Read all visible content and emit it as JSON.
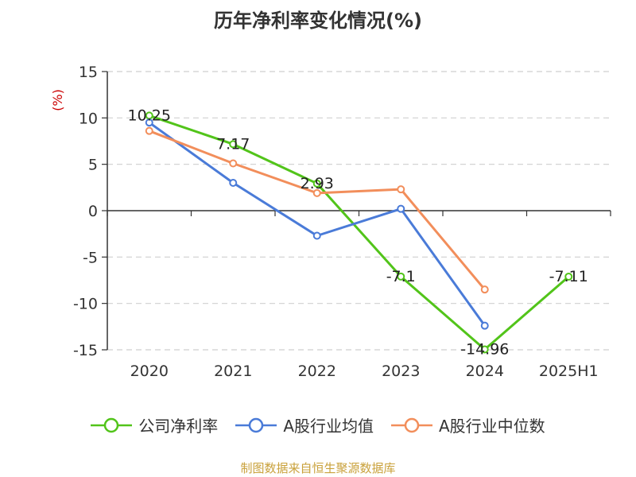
{
  "chart_data": {
    "type": "line",
    "title": "历年净利率变化情况(%)",
    "ylabel": "(%)",
    "categories": [
      "2020",
      "2021",
      "2022",
      "2023",
      "2024",
      "2025H1"
    ],
    "ylim": [
      -15,
      15
    ],
    "yticks": [
      15,
      10,
      5,
      0,
      -5,
      -10,
      -15
    ],
    "grid": true,
    "legend_position": "bottom",
    "series": [
      {
        "name": "公司净利率",
        "color": "#52c41a",
        "labels": true,
        "values": [
          10.25,
          7.17,
          2.93,
          -7.1,
          -14.96,
          -7.11
        ]
      },
      {
        "name": "A股行业均值",
        "color": "#4a7bd8",
        "labels": false,
        "values": [
          9.5,
          3.0,
          -2.7,
          0.2,
          -12.4,
          null
        ]
      },
      {
        "name": "A股行业中位数",
        "color": "#f28e5b",
        "labels": false,
        "values": [
          8.6,
          5.1,
          1.9,
          2.3,
          -8.5,
          null
        ]
      }
    ],
    "data_labels": [
      "10.25",
      "7.17",
      "2.93",
      "-7.1",
      "-14.96",
      "-7.11"
    ]
  },
  "source": "制图数据来自恒生聚源数据库"
}
